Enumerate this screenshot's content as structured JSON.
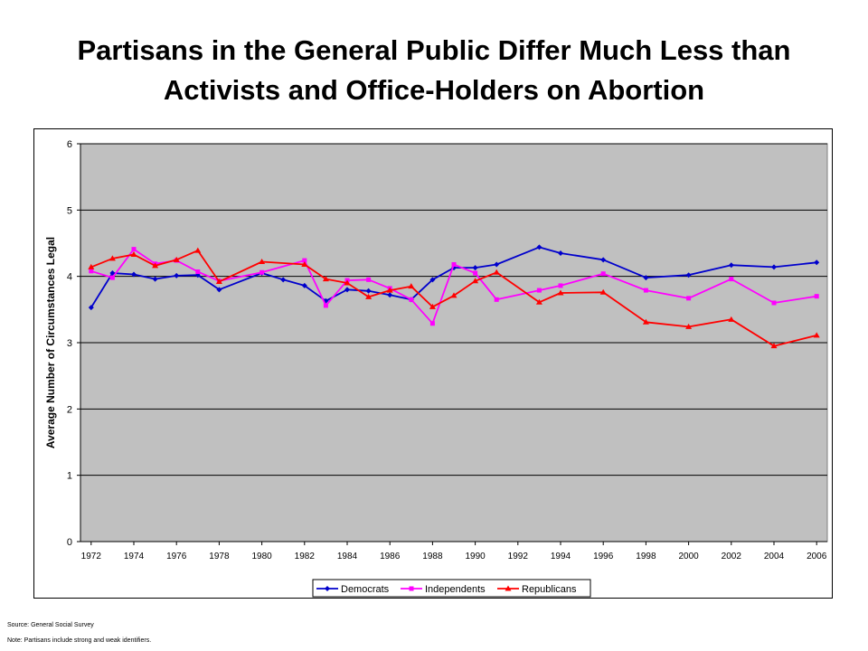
{
  "title_line1": "Partisans in the General Public Differ Much Less than",
  "title_line2": "Activists and Office-Holders on Abortion",
  "footer": {
    "source": "Source:  General Social Survey",
    "note": "Note: Partisans include strong and weak identifiers."
  },
  "chart_data": {
    "type": "line",
    "title": "",
    "xlabel": "",
    "ylabel": "Average Number of Circumstances Legal",
    "ylim": [
      0,
      6
    ],
    "yticks": [
      0,
      1,
      2,
      3,
      4,
      5,
      6
    ],
    "xlim": [
      1971.5,
      2006.5
    ],
    "xticks": [
      1972,
      1974,
      1976,
      1978,
      1980,
      1982,
      1984,
      1986,
      1988,
      1990,
      1992,
      1994,
      1996,
      1998,
      2000,
      2002,
      2004,
      2006
    ],
    "grid": "horizontal",
    "plot_background": "#c0c0c0",
    "legend_position": "bottom",
    "series": [
      {
        "name": "Democrats",
        "color": "#0000cc",
        "marker": "diamond",
        "x": [
          1972,
          1973,
          1974,
          1975,
          1976,
          1977,
          1978,
          1980,
          1981,
          1982,
          1983,
          1984,
          1985,
          1986,
          1987,
          1988,
          1989,
          1990,
          1991,
          1993,
          1994,
          1996,
          1998,
          2000,
          2002,
          2004,
          2006
        ],
        "y": [
          3.53,
          4.05,
          4.03,
          3.96,
          4.01,
          4.02,
          3.8,
          4.05,
          3.95,
          3.86,
          3.63,
          3.8,
          3.78,
          3.72,
          3.65,
          3.95,
          4.13,
          4.13,
          4.18,
          4.44,
          4.35,
          4.25,
          3.98,
          4.02,
          4.17,
          4.14,
          4.21
        ]
      },
      {
        "name": "Independents",
        "color": "#ff00ff",
        "marker": "square",
        "x": [
          1972,
          1973,
          1974,
          1975,
          1976,
          1977,
          1978,
          1980,
          1982,
          1983,
          1984,
          1985,
          1986,
          1987,
          1988,
          1989,
          1990,
          1991,
          1993,
          1994,
          1996,
          1998,
          2000,
          2002,
          2004,
          2006
        ],
        "y": [
          4.08,
          3.98,
          4.41,
          4.19,
          4.24,
          4.07,
          3.93,
          4.06,
          4.24,
          3.56,
          3.94,
          3.95,
          3.82,
          3.65,
          3.29,
          4.18,
          4.05,
          3.65,
          3.79,
          3.86,
          4.04,
          3.79,
          3.67,
          3.96,
          3.6,
          3.7
        ]
      },
      {
        "name": "Republicans",
        "color": "#ff0000",
        "marker": "triangle",
        "x": [
          1972,
          1973,
          1974,
          1975,
          1976,
          1977,
          1978,
          1980,
          1982,
          1983,
          1984,
          1985,
          1986,
          1987,
          1988,
          1989,
          1990,
          1991,
          1993,
          1994,
          1996,
          1998,
          2000,
          2002,
          2004,
          2006
        ],
        "y": [
          4.14,
          4.27,
          4.33,
          4.16,
          4.25,
          4.39,
          3.92,
          4.22,
          4.18,
          3.96,
          3.9,
          3.69,
          3.79,
          3.85,
          3.54,
          3.71,
          3.93,
          4.06,
          3.61,
          3.75,
          3.76,
          3.31,
          3.24,
          3.35,
          2.95,
          3.11
        ]
      }
    ]
  }
}
